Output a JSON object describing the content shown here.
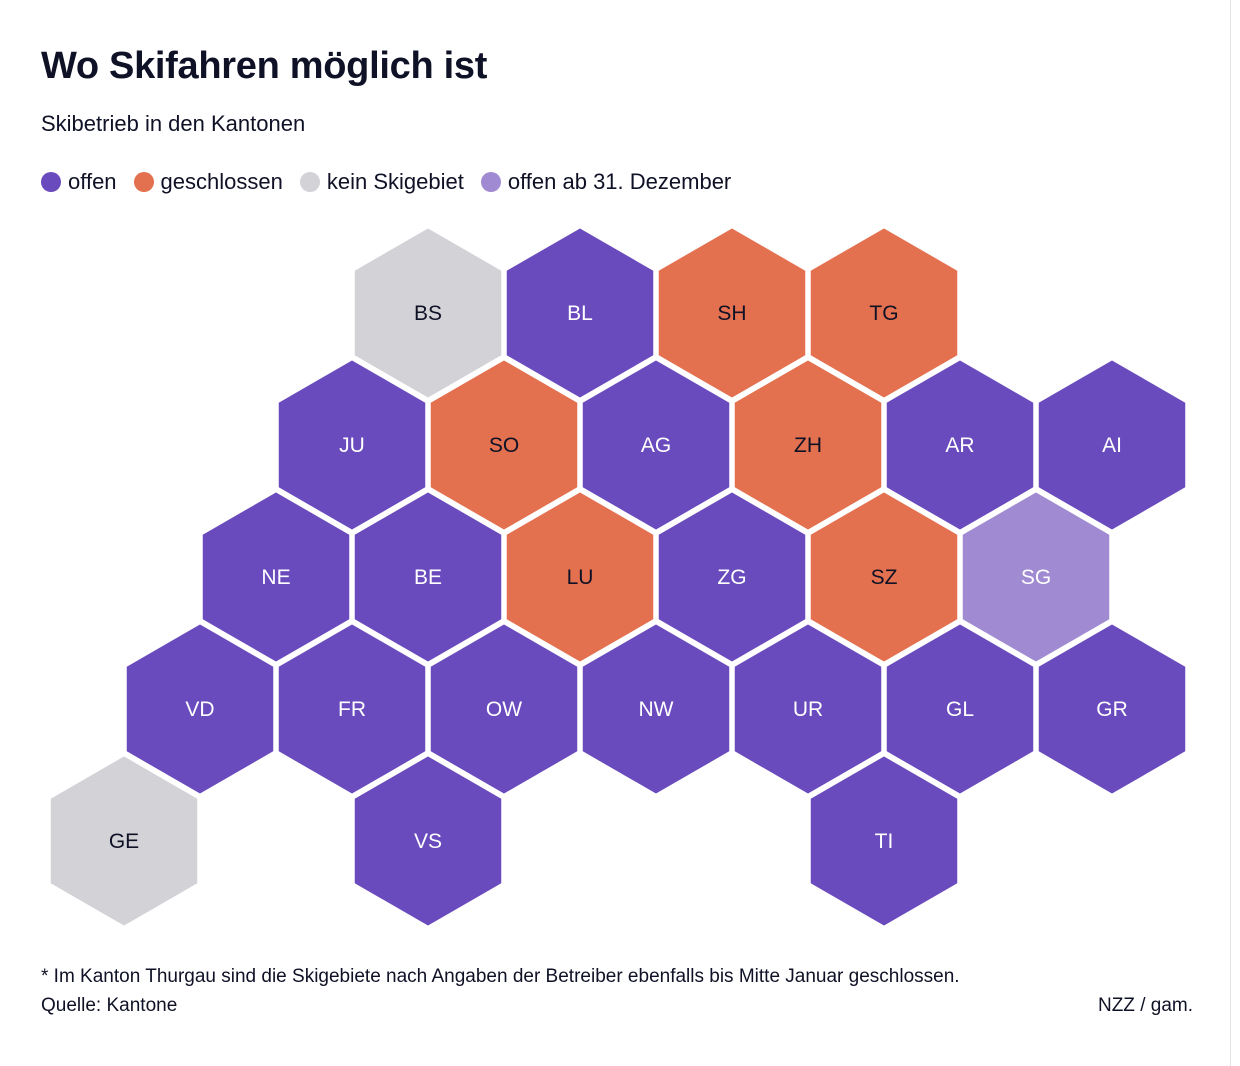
{
  "header": {
    "title": "Wo Skifahren möglich ist",
    "subtitle": "Skibetrieb in den Kantonen"
  },
  "legend": [
    {
      "key": "open",
      "label": "offen",
      "color": "#6a4bbd"
    },
    {
      "key": "closed",
      "label": "geschlossen",
      "color": "#e3704e"
    },
    {
      "key": "none",
      "label": "kein Skigebiet",
      "color": "#d2d2d7"
    },
    {
      "key": "later",
      "label": "offen ab 31. Dezember",
      "color": "#a08ad2"
    }
  ],
  "cantons": [
    {
      "code": "BS",
      "status": "none",
      "row": 0,
      "col": 5
    },
    {
      "code": "BL",
      "status": "open",
      "row": 0,
      "col": 7
    },
    {
      "code": "SH",
      "status": "closed",
      "row": 0,
      "col": 9
    },
    {
      "code": "TG",
      "status": "closed",
      "row": 0,
      "col": 11
    },
    {
      "code": "JU",
      "status": "open",
      "row": 1,
      "col": 4
    },
    {
      "code": "SO",
      "status": "closed",
      "row": 1,
      "col": 6
    },
    {
      "code": "AG",
      "status": "open",
      "row": 1,
      "col": 8
    },
    {
      "code": "ZH",
      "status": "closed",
      "row": 1,
      "col": 10
    },
    {
      "code": "AR",
      "status": "open",
      "row": 1,
      "col": 12
    },
    {
      "code": "AI",
      "status": "open",
      "row": 1,
      "col": 14
    },
    {
      "code": "NE",
      "status": "open",
      "row": 2,
      "col": 3
    },
    {
      "code": "BE",
      "status": "open",
      "row": 2,
      "col": 5
    },
    {
      "code": "LU",
      "status": "closed",
      "row": 2,
      "col": 7
    },
    {
      "code": "ZG",
      "status": "open",
      "row": 2,
      "col": 9
    },
    {
      "code": "SZ",
      "status": "closed",
      "row": 2,
      "col": 11
    },
    {
      "code": "SG",
      "status": "later",
      "row": 2,
      "col": 13
    },
    {
      "code": "VD",
      "status": "open",
      "row": 3,
      "col": 2
    },
    {
      "code": "FR",
      "status": "open",
      "row": 3,
      "col": 4
    },
    {
      "code": "OW",
      "status": "open",
      "row": 3,
      "col": 6
    },
    {
      "code": "NW",
      "status": "open",
      "row": 3,
      "col": 8
    },
    {
      "code": "UR",
      "status": "open",
      "row": 3,
      "col": 10
    },
    {
      "code": "GL",
      "status": "open",
      "row": 3,
      "col": 12
    },
    {
      "code": "GR",
      "status": "open",
      "row": 3,
      "col": 14
    },
    {
      "code": "GE",
      "status": "none",
      "row": 4,
      "col": 1
    },
    {
      "code": "VS",
      "status": "open",
      "row": 4,
      "col": 5
    },
    {
      "code": "TI",
      "status": "open",
      "row": 4,
      "col": 11
    }
  ],
  "footer": {
    "note": "* Im Kanton Thurgau sind die Skigebiete nach Angaben der Betreiber ebenfalls bis Mitte Januar geschlossen.",
    "source": "Quelle: Kantone",
    "credit": "NZZ / gam."
  }
}
